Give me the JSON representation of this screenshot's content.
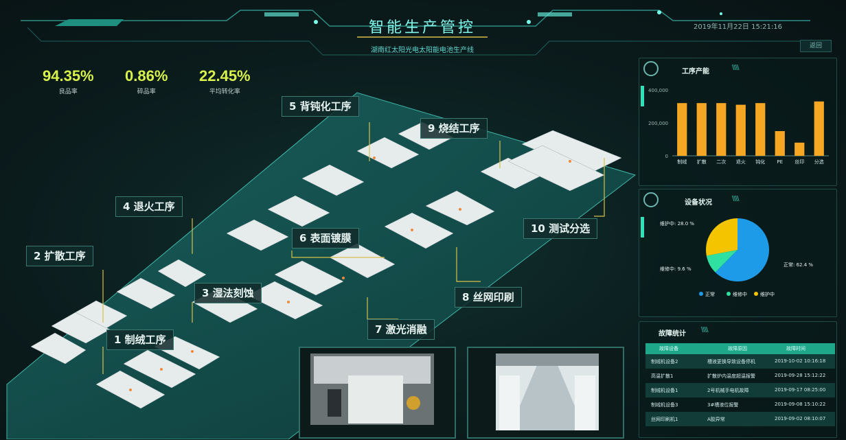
{
  "header": {
    "title": "智能生产管控",
    "subtitle": "湖南红太阳光电太阳能电池生产线",
    "datetime": "2019年11月22日 15:21:16",
    "back_button": "返回"
  },
  "kpis": [
    {
      "value": "94.35%",
      "label": "良品率"
    },
    {
      "value": "0.86%",
      "label": "碎品率"
    },
    {
      "value": "22.45%",
      "label": "平均转化率"
    }
  ],
  "process_labels": [
    {
      "text": "1 制绒工序"
    },
    {
      "text": "2 扩散工序"
    },
    {
      "text": "3 湿法刻蚀"
    },
    {
      "text": "4 退火工序"
    },
    {
      "text": "5 背钝化工序"
    },
    {
      "text": "6 表面镀膜"
    },
    {
      "text": "7 激光消融"
    },
    {
      "text": "8 丝网印刷"
    },
    {
      "text": "9 烧结工序"
    },
    {
      "text": "10 测试分选"
    }
  ],
  "production_panel": {
    "title": "工序产能",
    "chart_data": {
      "type": "bar",
      "categories": [
        "制绒",
        "扩散",
        "二次",
        "退火",
        "钝化",
        "PE",
        "丝印",
        "分选"
      ],
      "values": [
        320000,
        320000,
        320000,
        310000,
        320000,
        150000,
        80000,
        330000
      ],
      "ylim": [
        0,
        400000
      ],
      "yticks": [
        "400,000",
        "200,000",
        "0"
      ],
      "color": "#f5a623"
    }
  },
  "status_panel": {
    "title": "设备状况",
    "chart_data": {
      "type": "pie",
      "slices": [
        {
          "label": "正常",
          "value": 62.4,
          "color": "#1e9be8"
        },
        {
          "label": "维修中",
          "value": 9.6,
          "color": "#2fe0a0"
        },
        {
          "label": "维护中",
          "value": 28.0,
          "color": "#f5c400"
        }
      ],
      "callouts": [
        "维护中: 28.0 %",
        "维修中: 9.6 %",
        "正常: 62.4 %"
      ]
    }
  },
  "fault_panel": {
    "title": "故障统计",
    "columns": [
      "故障设备",
      "故障原因",
      "故障时间"
    ],
    "rows": [
      {
        "device": "制绒机设备2",
        "reason": "槽液更换导致设备停机",
        "time": "2019-10-02 10:16:18"
      },
      {
        "device": "高温扩散1",
        "reason": "扩散炉内温度超温报警",
        "time": "2019-09-28 15:12:22"
      },
      {
        "device": "制绒机设备1",
        "reason": "2号机械手电机故障",
        "time": "2019-09-17 08:25:00"
      },
      {
        "device": "制绒机设备3",
        "reason": "3#槽液位报警",
        "time": "2019-09-08 15:10:22"
      },
      {
        "device": "丝网印刷机1",
        "reason": "A胶异常",
        "time": "2019-09-02 08:10:07"
      }
    ]
  }
}
